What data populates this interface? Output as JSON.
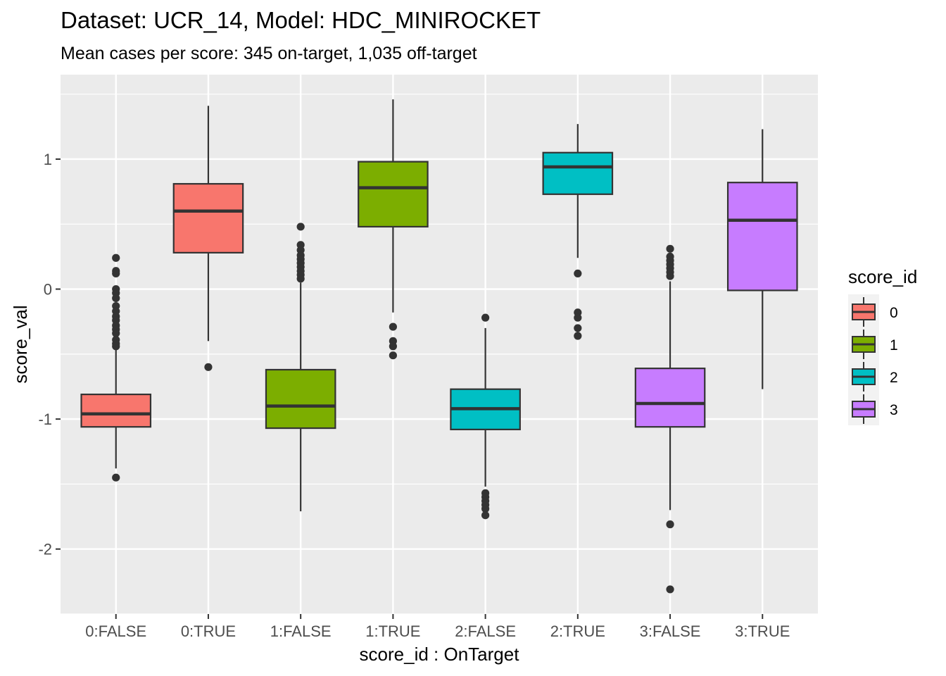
{
  "chart_data": {
    "type": "boxplot",
    "title": "Dataset: UCR_14, Model: HDC_MINIROCKET",
    "subtitle": "Mean cases per score: 345 on-target, 1,035 off-target",
    "xlabel": "score_id : OnTarget",
    "ylabel": "score_val",
    "ylim": [
      -2.5,
      1.65
    ],
    "yticks": [
      -2,
      -1,
      0,
      1
    ],
    "grid": true,
    "legend": {
      "title": "score_id",
      "position": "right",
      "entries": [
        {
          "label": "0",
          "color": "#F8766D"
        },
        {
          "label": "1",
          "color": "#7CAE00"
        },
        {
          "label": "2",
          "color": "#00BFC4"
        },
        {
          "label": "3",
          "color": "#C77CFF"
        }
      ]
    },
    "categories": [
      "0:FALSE",
      "0:TRUE",
      "1:FALSE",
      "1:TRUE",
      "2:FALSE",
      "2:TRUE",
      "3:FALSE",
      "3:TRUE"
    ],
    "boxes": [
      {
        "category": "0:FALSE",
        "group": "0",
        "whisker_low": -1.38,
        "q1": -1.06,
        "median": -0.96,
        "q3": -0.81,
        "whisker_high": -0.46,
        "outliers": [
          0.24,
          0.14,
          0.12,
          0.0,
          -0.03,
          -0.07,
          -0.13,
          -0.17,
          -0.21,
          -0.24,
          -0.28,
          -0.31,
          -0.34,
          -0.39,
          -0.42,
          -0.44,
          -1.45
        ]
      },
      {
        "category": "0:TRUE",
        "group": "0",
        "whisker_low": -0.4,
        "q1": 0.28,
        "median": 0.6,
        "q3": 0.81,
        "whisker_high": 1.41,
        "outliers": [
          -0.6
        ]
      },
      {
        "category": "1:FALSE",
        "group": "1",
        "whisker_low": -1.71,
        "q1": -1.07,
        "median": -0.9,
        "q3": -0.62,
        "whisker_high": 0.05,
        "outliers": [
          0.48,
          0.34,
          0.3,
          0.26,
          0.23,
          0.2,
          0.17,
          0.14,
          0.11,
          0.08
        ]
      },
      {
        "category": "1:TRUE",
        "group": "1",
        "whisker_low": -0.18,
        "q1": 0.48,
        "median": 0.78,
        "q3": 0.98,
        "whisker_high": 1.46,
        "outliers": [
          -0.29,
          -0.4,
          -0.44,
          -0.51
        ]
      },
      {
        "category": "2:FALSE",
        "group": "2",
        "whisker_low": -1.52,
        "q1": -1.08,
        "median": -0.92,
        "q3": -0.77,
        "whisker_high": -0.3,
        "outliers": [
          -0.22,
          -1.57,
          -1.6,
          -1.63,
          -1.66,
          -1.69,
          -1.74
        ]
      },
      {
        "category": "2:TRUE",
        "group": "2",
        "whisker_low": 0.24,
        "q1": 0.73,
        "median": 0.94,
        "q3": 1.05,
        "whisker_high": 1.27,
        "outliers": [
          0.12,
          -0.18,
          -0.22,
          -0.3,
          -0.36
        ]
      },
      {
        "category": "3:FALSE",
        "group": "3",
        "whisker_low": -1.7,
        "q1": -1.06,
        "median": -0.88,
        "q3": -0.61,
        "whisker_high": 0.06,
        "outliers": [
          0.31,
          0.25,
          0.22,
          0.19,
          0.16,
          0.13,
          0.1,
          -1.81,
          -2.31
        ]
      },
      {
        "category": "3:TRUE",
        "group": "3",
        "whisker_low": -0.77,
        "q1": -0.01,
        "median": 0.53,
        "q3": 0.82,
        "whisker_high": 1.23,
        "outliers": []
      }
    ]
  }
}
